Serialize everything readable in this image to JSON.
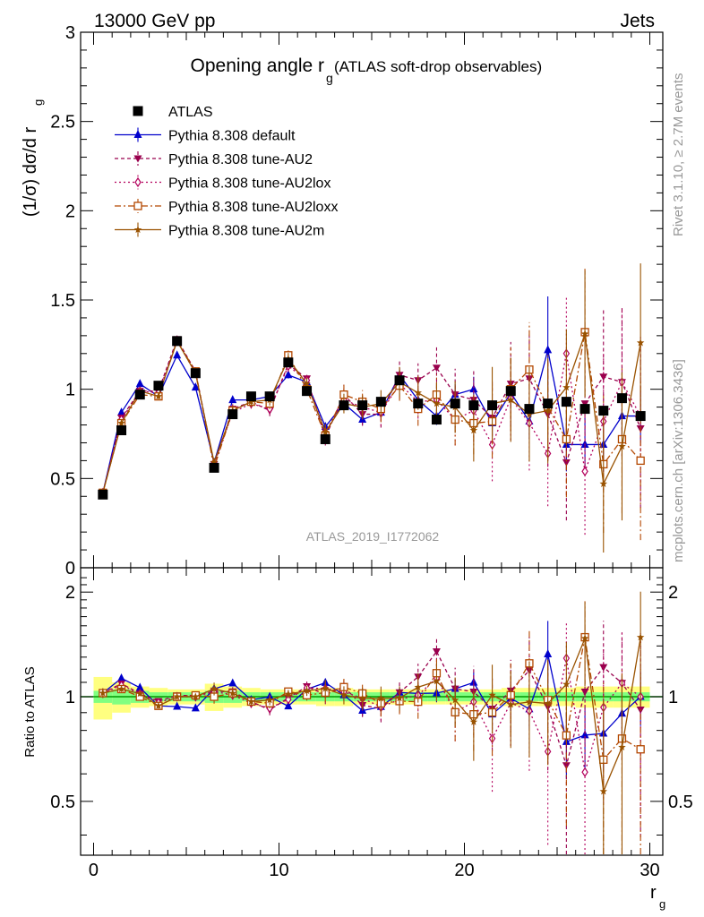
{
  "header": {
    "left": "13000 GeV pp",
    "right": "Jets",
    "title_main": "Opening angle r",
    "title_sub": "g",
    "title_paren": "(ATLAS soft-drop observables)",
    "rivet": "Rivet 3.1.10, ≥ 2.7M events",
    "mcplots": "mcplots.cern.ch [arXiv:1306.3436]",
    "analysis": "ATLAS_2019_I1772062"
  },
  "axes": {
    "ylabel_main": "(1/σ) dσ/d r",
    "ylabel_main_sub": "g",
    "ylabel_ratio": "Ratio to ATLAS",
    "xlabel": "r",
    "xlabel_sub": "g",
    "x_ticks": [
      "0",
      "10",
      "20",
      "30"
    ],
    "y_ticks": [
      "0",
      "0.5",
      "1",
      "1.5",
      "2",
      "2.5",
      "3"
    ],
    "ratio_ticks_left": [
      "0.5",
      "1",
      "2"
    ],
    "ratio_ticks_right": [
      "0.5",
      "1",
      "2"
    ]
  },
  "colors": {
    "atlas": "#000000",
    "default": "#0000cc",
    "au2": "#99004d",
    "au2lox": "#b3005c",
    "au2loxx": "#b34700",
    "au2m": "#995200",
    "band_inner": "#80ff80",
    "band_outer": "#ffff80",
    "ratio_line": "#009900"
  },
  "chart_data": {
    "type": "scatter",
    "xlim": [
      -0.7,
      30.7
    ],
    "ylim": [
      0,
      3
    ],
    "ratio_ylim": [
      0.35,
      2.35
    ],
    "ratio_log": true,
    "x": [
      0.5,
      1.5,
      2.5,
      3.5,
      4.5,
      5.5,
      6.5,
      7.5,
      8.5,
      9.5,
      10.5,
      11.5,
      12.5,
      13.5,
      14.5,
      15.5,
      16.5,
      17.5,
      18.5,
      19.5,
      20.5,
      21.5,
      22.5,
      23.5,
      24.5,
      25.5,
      26.5,
      27.5,
      28.5,
      29.5
    ],
    "data": {
      "name": "ATLAS",
      "values": [
        0.41,
        0.77,
        0.97,
        1.02,
        1.27,
        1.09,
        0.56,
        0.86,
        0.96,
        0.96,
        1.15,
        0.99,
        0.72,
        0.91,
        0.91,
        0.93,
        1.05,
        0.92,
        0.83,
        0.92,
        0.91,
        0.91,
        0.99,
        0.89,
        0.92,
        0.93,
        0.89,
        0.88,
        0.95,
        0.85
      ],
      "band_inner": [
        0.04,
        0.05,
        0.04,
        0.03,
        0.03,
        0.03,
        0.04,
        0.04,
        0.03,
        0.03,
        0.03,
        0.03,
        0.03,
        0.03,
        0.03,
        0.03,
        0.03,
        0.03,
        0.03,
        0.03,
        0.03,
        0.03,
        0.03,
        0.03,
        0.03,
        0.03,
        0.03,
        0.03,
        0.03,
        0.03
      ],
      "band_outer": [
        0.14,
        0.1,
        0.07,
        0.06,
        0.05,
        0.05,
        0.09,
        0.07,
        0.06,
        0.05,
        0.05,
        0.05,
        0.06,
        0.06,
        0.05,
        0.05,
        0.05,
        0.05,
        0.05,
        0.05,
        0.05,
        0.05,
        0.06,
        0.06,
        0.06,
        0.06,
        0.07,
        0.07,
        0.07,
        0.07
      ]
    },
    "series": [
      {
        "name": "Pythia 8.308 default",
        "key": "default",
        "marker": "triangle",
        "dash": "",
        "values": [
          0.42,
          0.87,
          1.03,
          0.96,
          1.19,
          1.01,
          0.59,
          0.94,
          0.94,
          0.96,
          1.08,
          1.04,
          0.79,
          0.92,
          0.83,
          0.87,
          1.08,
          0.94,
          0.85,
          0.97,
          1.0,
          0.81,
          0.98,
          0.82,
          1.22,
          0.69,
          0.69,
          0.69,
          0.85,
          0.85
        ],
        "err": [
          0.01,
          0.01,
          0.01,
          0.01,
          0.01,
          0.01,
          0.01,
          0.01,
          0.02,
          0.02,
          0.02,
          0.02,
          0.02,
          0.03,
          0.03,
          0.03,
          0.04,
          0.05,
          0.05,
          0.06,
          0.07,
          0.08,
          0.08,
          0.1,
          0.3,
          0.15,
          0.15,
          0.15,
          0.15,
          0.15
        ]
      },
      {
        "name": "Pythia 8.308 tune-AU2",
        "key": "au2",
        "marker": "triangle-down",
        "dash": "4,3",
        "values": [
          0.42,
          0.84,
          0.99,
          0.99,
          1.28,
          1.1,
          0.58,
          0.89,
          0.93,
          0.88,
          1.14,
          1.06,
          0.73,
          0.97,
          0.86,
          0.86,
          1.08,
          1.05,
          1.12,
          0.97,
          0.94,
          0.84,
          1.03,
          1.06,
          0.86,
          0.59,
          0.92,
          1.07,
          1.04,
          0.78
        ]
      },
      {
        "name": "Pythia 8.308 tune-AU2lox",
        "key": "au2lox",
        "marker": "diamond",
        "dash": "2,3",
        "values": [
          0.42,
          0.83,
          0.99,
          0.98,
          1.27,
          1.09,
          0.58,
          0.87,
          0.92,
          0.89,
          1.13,
          1.05,
          0.76,
          0.94,
          0.9,
          0.87,
          1.03,
          0.93,
          0.94,
          0.83,
          0.88,
          0.69,
          0.95,
          0.81,
          0.64,
          1.2,
          0.54,
          0.82,
          1.04,
          0.85
        ]
      },
      {
        "name": "Pythia 8.308 tune-AU2loxx",
        "key": "au2loxx",
        "marker": "square-open",
        "dash": "7,3,2,3",
        "values": [
          0.42,
          0.81,
          0.97,
          0.96,
          1.27,
          1.1,
          0.56,
          0.88,
          0.93,
          0.92,
          1.19,
          1.0,
          0.74,
          0.97,
          0.93,
          0.89,
          1.02,
          0.89,
          0.97,
          0.83,
          0.81,
          0.82,
          1.0,
          1.11,
          0.9,
          0.72,
          1.32,
          0.58,
          0.72,
          0.6
        ]
      },
      {
        "name": "Pythia 8.308 tune-AU2m",
        "key": "au2m",
        "marker": "star",
        "dash": "",
        "values": [
          0.42,
          0.81,
          0.99,
          0.96,
          1.27,
          1.09,
          0.59,
          0.88,
          0.93,
          0.94,
          1.17,
          1.03,
          0.76,
          0.92,
          0.9,
          0.92,
          1.04,
          0.98,
          0.92,
          0.9,
          0.77,
          0.92,
          0.94,
          0.86,
          0.88,
          1.01,
          1.31,
          0.47,
          0.68,
          1.26
        ]
      }
    ]
  }
}
